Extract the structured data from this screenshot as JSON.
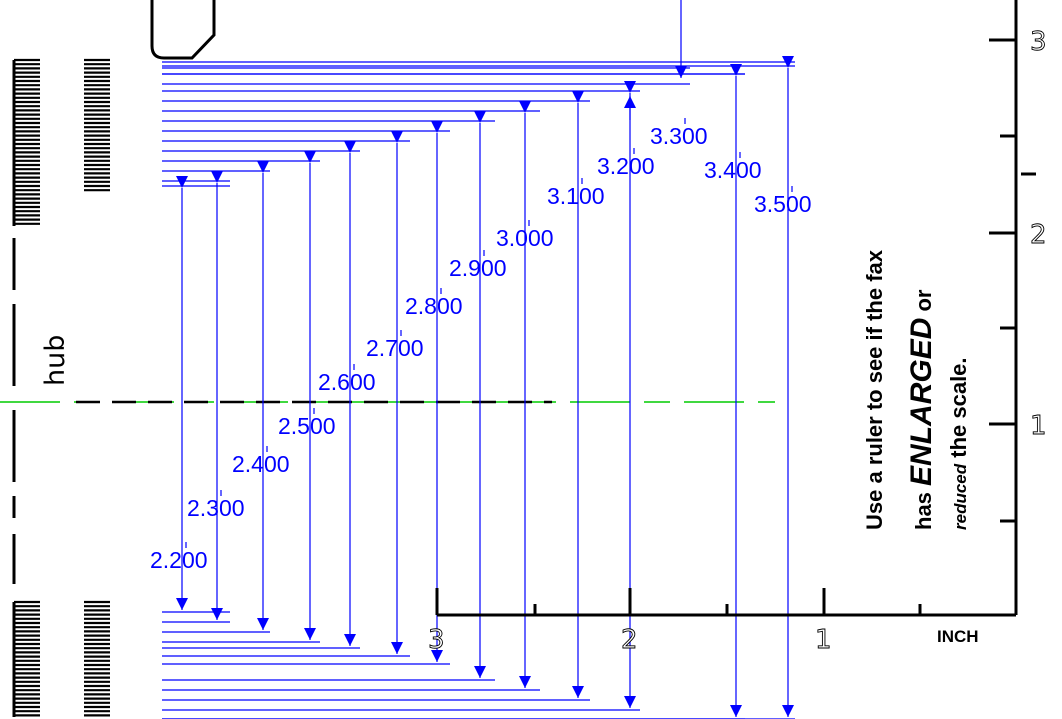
{
  "hub_label": "hub",
  "dimension_labels": [
    "2.200",
    "2.300",
    "2.400",
    "2.500",
    "2.600",
    "2.700",
    "2.800",
    "2.900",
    "3.000",
    "3.100",
    "3.200",
    "3.300",
    "3.400",
    "3.500"
  ],
  "horizontal_ruler": {
    "numbers": [
      "3",
      "2",
      "1"
    ],
    "unit_label": "INCH"
  },
  "vertical_ruler": {
    "numbers": [
      "3",
      "2",
      "1"
    ]
  },
  "note": {
    "line1": "Use a ruler to see if the fax",
    "line2_prefix": "has ",
    "line2_emphasis": "ENLARGED",
    "line2_suffix": " or",
    "line3_emphasis": "reduced",
    "line3_suffix": " the scale."
  },
  "colors": {
    "dimension": "#0000ff",
    "centerline": "#00cc00",
    "outline": "#000000"
  }
}
